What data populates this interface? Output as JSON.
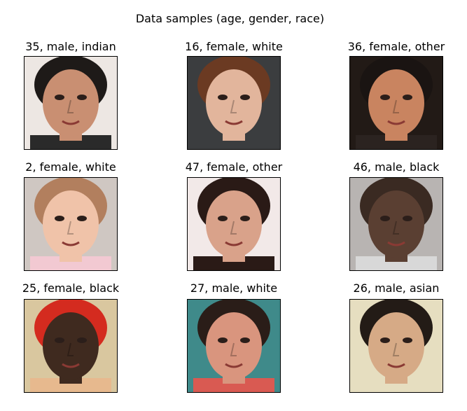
{
  "title": "Data samples (age, gender, race)",
  "samples": [
    {
      "label": "35, male, indian",
      "bg": "#ede7e3",
      "skin": "#c98f72",
      "hair": "#1e1a18",
      "clothes": "#2a2a2a"
    },
    {
      "label": "16, female, white",
      "bg": "#3b3d3f",
      "skin": "#e2b59c",
      "hair": "#6b3a22",
      "clothes": "#3b3d3f"
    },
    {
      "label": "36, female, other",
      "bg": "#221a16",
      "skin": "#c98460",
      "hair": "#1a1412",
      "clothes": "#2b2320"
    },
    {
      "label": "2, female, white",
      "bg": "#cfc7c2",
      "skin": "#f0c3a9",
      "hair": "#b27f5e",
      "clothes": "#f2c9d2"
    },
    {
      "label": "47, female, other",
      "bg": "#f2e9e8",
      "skin": "#d9a28a",
      "hair": "#2a1a16",
      "clothes": "#2a1a16"
    },
    {
      "label": "46, male, black",
      "bg": "#b8b4b2",
      "skin": "#5a3f32",
      "hair": "#3a2a22",
      "clothes": "#d8d8d8"
    },
    {
      "label": "25, female, black",
      "bg": "#d9c79f",
      "skin": "#3f2a1f",
      "hair": "#d42b1f",
      "clothes": "#e7b98e"
    },
    {
      "label": "27, male, white",
      "bg": "#3f8a8a",
      "skin": "#d9957e",
      "hair": "#2a1d18",
      "clothes": "#d95a52"
    },
    {
      "label": "26, male, asian",
      "bg": "#e6dec0",
      "skin": "#d6aa86",
      "hair": "#231b16",
      "clothes": "#e6dec0"
    }
  ]
}
